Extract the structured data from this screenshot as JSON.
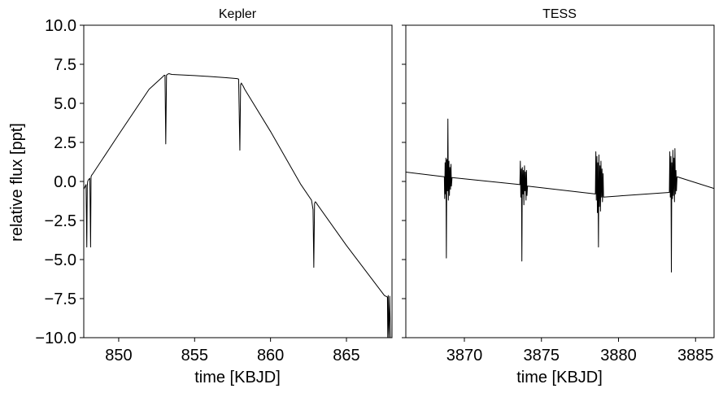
{
  "chart_data": [
    {
      "type": "line",
      "title": "Kepler",
      "xlabel": "time [KBJD]",
      "ylabel": "relative flux [ppt]",
      "xlim": [
        847.7,
        868.0
      ],
      "ylim": [
        -10,
        10
      ],
      "xticks": [
        "850",
        "855",
        "860",
        "865"
      ],
      "xtick_values": [
        850,
        855,
        860,
        865
      ],
      "yticks": [
        "10.0",
        "7.5",
        "5.0",
        "2.5",
        "0.0",
        "−2.5",
        "−5.0",
        "−7.5",
        "−10.0"
      ],
      "ytick_values": [
        10,
        7.5,
        5,
        2.5,
        0,
        -2.5,
        -5,
        -7.5,
        -10
      ],
      "line_color": "#000000",
      "series": [
        {
          "x": [
            847.7,
            847.85,
            847.9,
            847.93,
            847.96,
            848.0,
            848.05,
            848.1,
            848.15,
            848.18,
            848.22,
            848.3,
            850.0,
            852.0,
            852.9,
            853.0,
            853.05,
            853.1,
            853.15,
            853.2,
            853.3,
            853.5,
            855.0,
            857.0,
            857.8,
            857.9,
            857.98,
            858.03,
            858.08,
            858.13,
            858.2,
            858.3,
            860.0,
            862.0,
            862.7,
            862.8,
            862.85,
            862.9,
            862.95,
            863.0,
            863.1,
            865.0,
            867.5,
            867.7,
            867.72,
            867.75,
            867.8,
            867.85,
            867.9
          ],
          "y": [
            -0.5,
            -0.2,
            -4.2,
            -0.3,
            0.0,
            0.1,
            0.15,
            0.2,
            -4.2,
            0.3,
            0.4,
            0.5,
            3.0,
            5.9,
            6.7,
            6.8,
            6.8,
            2.4,
            6.8,
            6.85,
            6.9,
            6.85,
            6.78,
            6.65,
            6.58,
            6.55,
            2.0,
            6.2,
            6.3,
            6.2,
            6.1,
            5.9,
            3.2,
            -0.2,
            -1.2,
            -1.8,
            -5.5,
            -1.4,
            -1.3,
            -1.35,
            -1.5,
            -4.1,
            -7.3,
            -7.4,
            -10.0,
            -7.3,
            -10.0,
            -7.35,
            -10.0
          ]
        }
      ]
    },
    {
      "type": "line",
      "title": "TESS",
      "xlabel": "time [KBJD]",
      "ylabel": "",
      "xlim": [
        3866.2,
        3886.2
      ],
      "ylim": [
        -10,
        10
      ],
      "xticks": [
        "3870",
        "3875",
        "3880",
        "3885"
      ],
      "xtick_values": [
        3870,
        3875,
        3880,
        3885
      ],
      "yticks": [],
      "line_color": "#000000",
      "series": [
        {
          "x": [
            3866.2,
            3868.7,
            3868.72,
            3868.75,
            3868.78,
            3868.8,
            3868.83,
            3868.86,
            3868.9,
            3868.93,
            3868.96,
            3869.0,
            3869.03,
            3869.06,
            3869.1,
            3869.13,
            3869.16,
            3869.2,
            3873.6,
            3873.63,
            3873.66,
            3873.7,
            3873.73,
            3873.76,
            3873.8,
            3873.83,
            3873.86,
            3873.9,
            3873.93,
            3873.96,
            3874.0,
            3874.03,
            3874.06,
            3874.1,
            3878.5,
            3878.53,
            3878.56,
            3878.6,
            3878.63,
            3878.66,
            3878.7,
            3878.73,
            3878.76,
            3878.8,
            3878.83,
            3878.86,
            3878.9,
            3878.93,
            3878.96,
            3879.0,
            3879.03,
            3883.3,
            3883.33,
            3883.36,
            3883.4,
            3883.43,
            3883.46,
            3883.5,
            3883.53,
            3883.56,
            3883.6,
            3883.63,
            3883.66,
            3883.7,
            3883.73,
            3883.76,
            3883.8,
            3886.2
          ],
          "y": [
            0.6,
            0.3,
            -1.1,
            1.2,
            -0.8,
            1.5,
            -4.9,
            1.4,
            -0.6,
            4.0,
            -1.2,
            1.3,
            -0.9,
            0.9,
            -0.5,
            1.1,
            -0.3,
            0.25,
            -0.2,
            1.3,
            -1.0,
            0.8,
            -5.1,
            0.9,
            -0.8,
            0.7,
            -1.5,
            1.0,
            -0.6,
            0.6,
            -1.2,
            0.7,
            -0.9,
            -0.3,
            -0.8,
            1.9,
            -1.2,
            1.6,
            -2.0,
            1.2,
            -4.2,
            1.7,
            -1.6,
            1.0,
            -1.9,
            1.3,
            -1.0,
            0.8,
            -1.3,
            0.5,
            -1.0,
            -0.7,
            1.9,
            -1.0,
            1.6,
            -5.8,
            1.2,
            -1.1,
            2.0,
            -0.9,
            1.5,
            -1.3,
            2.1,
            -0.8,
            0.7,
            -0.6,
            0.3,
            -0.45
          ]
        }
      ]
    }
  ]
}
